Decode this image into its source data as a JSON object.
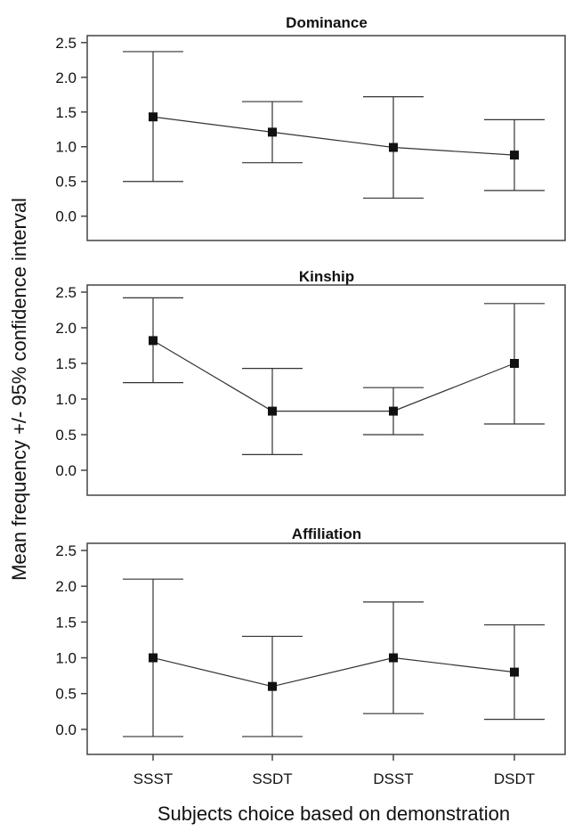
{
  "figure": {
    "ylabel": "Mean frequency +/- 95% confidence interval",
    "xlabel": "Subjects choice based on demonstration"
  },
  "chart_data": [
    {
      "type": "line",
      "title": "Dominance",
      "categories": [
        "SSST",
        "SSDT",
        "DSST",
        "DSDT"
      ],
      "mean": [
        1.43,
        1.21,
        0.99,
        0.88
      ],
      "ci_low": [
        0.5,
        0.77,
        0.26,
        0.37
      ],
      "ci_high": [
        2.37,
        1.65,
        1.72,
        1.39
      ],
      "ylim": [
        -0.35,
        2.6
      ],
      "yticks": [
        "2.5",
        "2.0",
        "1.5",
        "1.0",
        "0.5",
        "0.0"
      ],
      "error_bars": "95% CI",
      "grid": false
    },
    {
      "type": "line",
      "title": "Kinship",
      "categories": [
        "SSST",
        "SSDT",
        "DSST",
        "DSDT"
      ],
      "mean": [
        1.82,
        0.83,
        0.83,
        1.5
      ],
      "ci_low": [
        1.23,
        0.22,
        0.5,
        0.65
      ],
      "ci_high": [
        2.42,
        1.43,
        1.16,
        2.34
      ],
      "ylim": [
        -0.35,
        2.6
      ],
      "yticks": [
        "2.5",
        "2.0",
        "1.5",
        "1.0",
        "0.5",
        "0.0"
      ],
      "error_bars": "95% CI",
      "grid": false
    },
    {
      "type": "line",
      "title": "Affiliation",
      "categories": [
        "SSST",
        "SSDT",
        "DSST",
        "DSDT"
      ],
      "mean": [
        1.0,
        0.6,
        1.0,
        0.8
      ],
      "ci_low": [
        -0.1,
        -0.1,
        0.22,
        0.14
      ],
      "ci_high": [
        2.1,
        1.3,
        1.78,
        1.46
      ],
      "ylim": [
        -0.35,
        2.6
      ],
      "yticks": [
        "2.5",
        "2.0",
        "1.5",
        "1.0",
        "0.5",
        "0.0"
      ],
      "xticks": [
        "SSST",
        "SSDT",
        "DSST",
        "DSDT"
      ],
      "error_bars": "95% CI",
      "grid": false
    }
  ]
}
